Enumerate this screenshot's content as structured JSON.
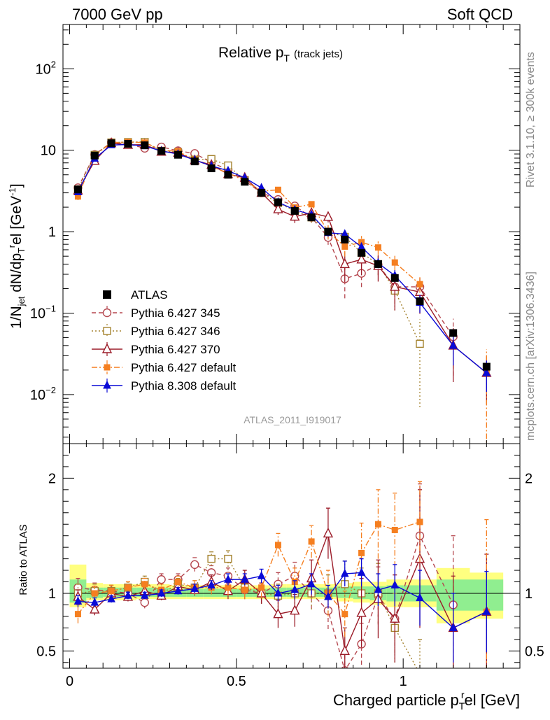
{
  "header": {
    "left": "7000 GeV pp",
    "right": "Soft QCD"
  },
  "side_labels": {
    "rivet": "Rivet 3.1.10, ≥ 300k events",
    "mcplots": "mcplots.cern.ch [arXiv:1306.3436]"
  },
  "chart_data": {
    "type": "scatter",
    "title": "Relative p_T (track jets)",
    "title_main": "Relative p",
    "title_sub": "T",
    "title_note": "(track jets)",
    "analysis_label": "ATLAS_2011_I919017",
    "xlabel": "Charged particle p_T^rel [GeV]",
    "xlabel_main": "Charged particle p",
    "xlabel_sub": "T",
    "xlabel_sup": "r",
    "xlabel_tail": "el [GeV]",
    "ylabel": "1/N_jet dN/dp_T^rel [GeV^-1]",
    "ratio_ylabel": "Ratio to ATLAS",
    "xlim": [
      -0.02,
      1.35
    ],
    "ylim_main": [
      0.0025,
      350
    ],
    "yscale_main": "log",
    "ylim_ratio": [
      0.35,
      2.3
    ],
    "x_ticks": [
      "0",
      "0.5",
      "1"
    ],
    "y_ticks_main": [
      {
        "base": "10",
        "exp": "−2",
        "value": 0.01
      },
      {
        "base": "10",
        "exp": "−1",
        "value": 0.1
      },
      {
        "base": "1",
        "exp": "",
        "value": 1
      },
      {
        "base": "10",
        "exp": "",
        "value": 10
      },
      {
        "base": "10",
        "exp": "2",
        "value": 100
      }
    ],
    "y_ticks_ratio": [
      "0.5",
      "1",
      "2"
    ],
    "legend_position": "lower-left",
    "x": [
      0.025,
      0.075,
      0.125,
      0.175,
      0.225,
      0.275,
      0.325,
      0.375,
      0.425,
      0.475,
      0.525,
      0.575,
      0.625,
      0.675,
      0.725,
      0.775,
      0.825,
      0.875,
      0.925,
      0.975,
      1.05,
      1.15,
      1.25
    ],
    "data": {
      "name": "ATLAS",
      "values": [
        3.3,
        8.6,
        12.2,
        12.0,
        11.5,
        9.8,
        8.8,
        7.3,
        6.0,
        5.0,
        4.1,
        3.0,
        2.3,
        1.8,
        1.5,
        1.0,
        0.8,
        0.55,
        0.4,
        0.27,
        0.14,
        0.057,
        0.022
      ]
    },
    "uncertainty_bands": {
      "edges": [
        0.0,
        0.05,
        0.1,
        0.15,
        0.2,
        0.25,
        0.3,
        0.35,
        0.4,
        0.45,
        0.5,
        0.55,
        0.6,
        0.65,
        0.7,
        0.75,
        0.8,
        0.85,
        0.9,
        0.95,
        1.0,
        1.1,
        1.2,
        1.3
      ],
      "stat_syst_lo": [
        0.88,
        0.94,
        0.94,
        0.94,
        0.95,
        0.95,
        0.95,
        0.95,
        0.95,
        0.95,
        0.95,
        0.95,
        0.95,
        0.95,
        0.95,
        0.95,
        0.93,
        0.92,
        0.9,
        0.88,
        0.88,
        0.74,
        0.78,
        0.35
      ],
      "stat_syst_hi": [
        1.25,
        1.09,
        1.08,
        1.08,
        1.08,
        1.08,
        1.07,
        1.07,
        1.07,
        1.07,
        1.07,
        1.07,
        1.08,
        1.08,
        1.08,
        1.08,
        1.09,
        1.1,
        1.1,
        1.12,
        1.12,
        1.22,
        1.18,
        1.72
      ],
      "syst_lo": [
        0.92,
        0.96,
        0.97,
        0.97,
        0.97,
        0.97,
        0.97,
        0.97,
        0.97,
        0.97,
        0.97,
        0.97,
        0.97,
        0.97,
        0.97,
        0.97,
        0.96,
        0.95,
        0.94,
        0.93,
        0.93,
        0.85,
        0.85,
        0.6
      ],
      "syst_hi": [
        1.12,
        1.05,
        1.05,
        1.05,
        1.05,
        1.05,
        1.04,
        1.04,
        1.04,
        1.04,
        1.04,
        1.04,
        1.05,
        1.05,
        1.05,
        1.05,
        1.06,
        1.06,
        1.06,
        1.07,
        1.07,
        1.12,
        1.12,
        1.48
      ]
    },
    "series": [
      {
        "name": "Pythia 6.427 345",
        "color": "#b5474f",
        "marker": "circle-open",
        "dash": "dashed",
        "ratio": [
          1.05,
          1.03,
          1.02,
          1.0,
          0.92,
          1.12,
          1.12,
          1.25,
          1.18,
          1.15,
          1.03,
          1.0,
          1.08,
          1.15,
          1.0,
          0.85,
          0.33,
          0.56,
          0.98,
          0.78,
          1.5,
          0.9,
          null
        ],
        "err": [
          0.08,
          0.06,
          0.05,
          0.05,
          0.05,
          0.05,
          0.05,
          0.06,
          0.06,
          0.07,
          0.08,
          0.09,
          0.1,
          0.12,
          0.14,
          0.16,
          0.14,
          0.18,
          0.25,
          0.3,
          0.45,
          0.6,
          null
        ]
      },
      {
        "name": "Pythia 6.427 346",
        "color": "#a58431",
        "marker": "square-open",
        "dash": "dotted",
        "ratio": [
          1.0,
          1.02,
          1.02,
          1.05,
          1.1,
          1.0,
          1.08,
          1.05,
          1.3,
          1.3,
          1.05,
          1.0,
          0.98,
          1.0,
          1.0,
          1.0,
          1.08,
          1.0,
          1.0,
          0.7,
          0.3,
          null,
          null
        ],
        "err": [
          0.08,
          0.06,
          0.05,
          0.05,
          0.05,
          0.05,
          0.05,
          0.06,
          0.06,
          0.07,
          0.08,
          0.09,
          0.1,
          0.12,
          0.14,
          0.16,
          0.2,
          0.22,
          0.26,
          0.3,
          0.3,
          null,
          null
        ]
      },
      {
        "name": "Pythia 6.427 370",
        "color": "#9b1b28",
        "marker": "triangle-open",
        "dash": "solid",
        "ratio": [
          0.97,
          0.86,
          1.0,
          0.97,
          1.02,
          0.98,
          1.06,
          1.03,
          1.1,
          1.02,
          1.12,
          1.0,
          0.82,
          0.85,
          1.13,
          1.52,
          0.5,
          0.83,
          0.95,
          0.78,
          1.3,
          0.7,
          0.84
        ],
        "err": [
          0.06,
          0.05,
          0.04,
          0.04,
          0.04,
          0.04,
          0.05,
          0.05,
          0.06,
          0.07,
          0.08,
          0.09,
          0.12,
          0.14,
          0.16,
          0.22,
          0.2,
          0.3,
          0.34,
          0.38,
          0.6,
          0.45,
          0.5
        ]
      },
      {
        "name": "Pythia 6.427 default",
        "color": "#f57f20",
        "marker": "square-filled",
        "dash": "dashdot",
        "ratio": [
          0.82,
          1.0,
          1.02,
          1.05,
          1.08,
          1.03,
          1.1,
          1.05,
          1.05,
          1.05,
          1.03,
          1.05,
          1.42,
          1.1,
          1.45,
          1.0,
          0.82,
          1.35,
          1.6,
          1.55,
          1.62,
          null,
          0.84
        ],
        "err": [
          0.08,
          0.06,
          0.05,
          0.05,
          0.05,
          0.05,
          0.05,
          0.06,
          0.06,
          0.07,
          0.08,
          0.09,
          0.1,
          0.12,
          0.14,
          0.2,
          0.2,
          0.26,
          0.3,
          0.32,
          0.35,
          null,
          0.8
        ]
      },
      {
        "name": "Pythia 8.308 default",
        "color": "#0a0ad6",
        "marker": "triangle-filled",
        "dash": "solid",
        "ratio": [
          0.93,
          0.92,
          0.95,
          0.98,
          0.98,
          1.0,
          1.02,
          1.04,
          1.07,
          1.12,
          1.12,
          1.15,
          1.0,
          1.03,
          1.08,
          0.97,
          1.17,
          1.18,
          1.03,
          1.07,
          0.96,
          0.7,
          0.84
        ],
        "err": [
          0.05,
          0.04,
          0.03,
          0.03,
          0.03,
          0.03,
          0.03,
          0.04,
          0.04,
          0.05,
          0.05,
          0.06,
          0.07,
          0.08,
          0.09,
          0.1,
          0.11,
          0.12,
          0.14,
          0.18,
          0.24,
          0.3,
          0.35
        ]
      }
    ]
  }
}
